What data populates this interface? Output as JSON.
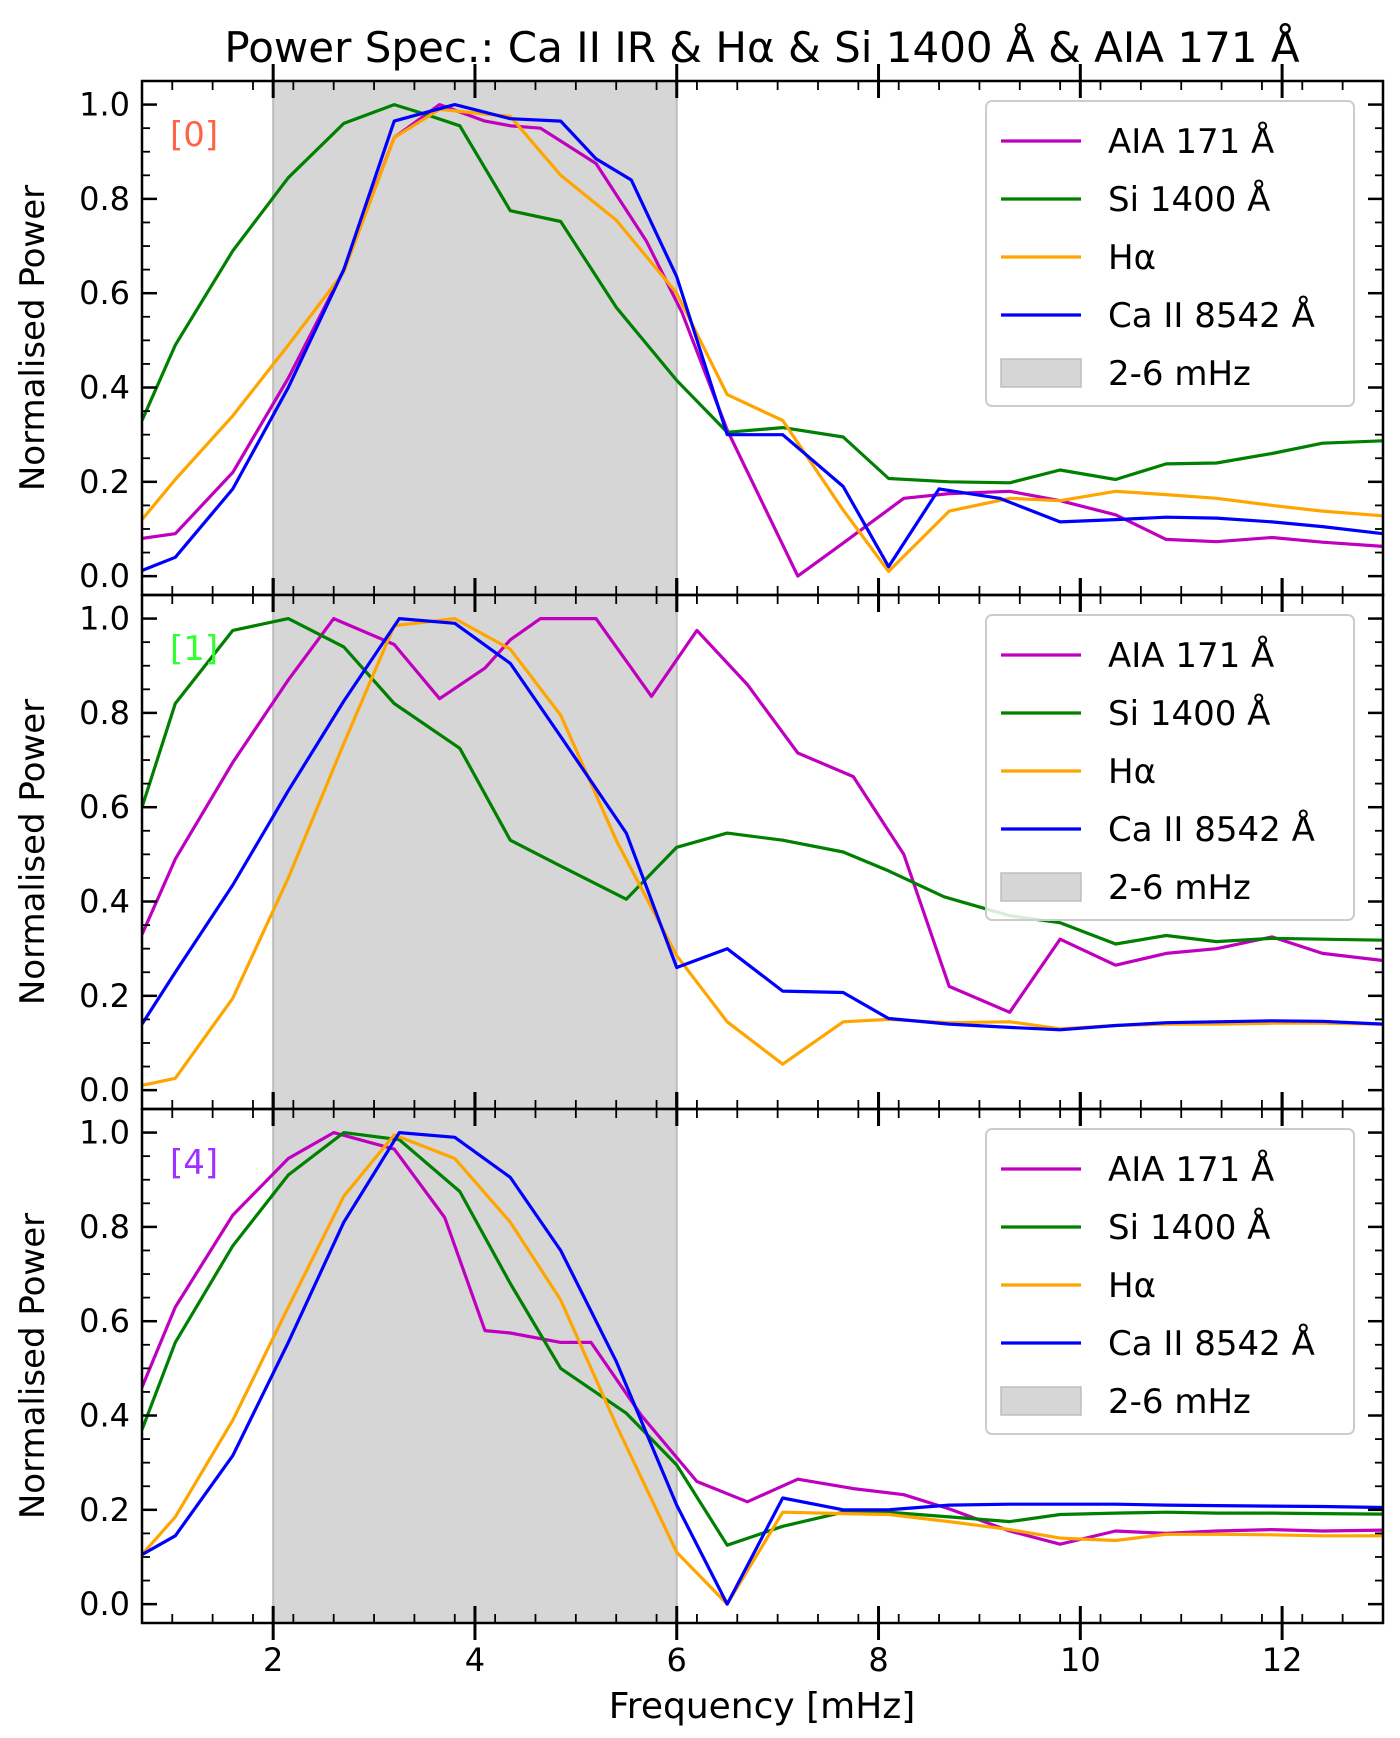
{
  "figure_title": "Power Spec.: Ca II IR & Hα & Si 1400 Å & AIA 171 Å",
  "xlabel": "Frequency [mHz]",
  "ylabel": "Normalised Power",
  "colors": {
    "AIA 171 Å": "#bf00bf",
    "Si 1400 Å": "#008000",
    "Hα": "#ffa500",
    "Ca II 8542 Å": "#0000ff",
    "band": "#d6d6d6"
  },
  "chart_data": [
    {
      "type": "line",
      "panel_label": "[0]",
      "panel_label_color": "#ff6347",
      "xlim": [
        0.7,
        13.0
      ],
      "ylim": [
        -0.04,
        1.05
      ],
      "xticks": [
        "2",
        "4",
        "6",
        "8",
        "10",
        "12"
      ],
      "yticks": [
        "0.0",
        "0.2",
        "0.4",
        "0.6",
        "0.8",
        "1.0"
      ],
      "shaded_band": {
        "label": "2-6 mHz",
        "x": [
          2,
          6
        ]
      },
      "legend": [
        "AIA 171 Å",
        "Si 1400 Å",
        "Hα",
        "Ca II 8542 Å",
        "2-6 mHz"
      ],
      "series": [
        {
          "name": "AIA 171 Å",
          "x": [
            0.7,
            1.03,
            1.6,
            2.15,
            2.7,
            3.2,
            3.65,
            4.1,
            4.35,
            4.65,
            5.2,
            5.7,
            6.05,
            6.5,
            7.2,
            7.65,
            8.25,
            8.7,
            9.3,
            9.8,
            10.35,
            10.85,
            11.35,
            11.9,
            12.4,
            13.0
          ],
          "y": [
            0.08,
            0.09,
            0.22,
            0.42,
            0.65,
            0.93,
            1.0,
            0.965,
            0.955,
            0.95,
            0.875,
            0.71,
            0.56,
            0.31,
            0.0,
            0.07,
            0.165,
            0.175,
            0.18,
            0.16,
            0.13,
            0.078,
            0.073,
            0.082,
            0.072,
            0.063
          ]
        },
        {
          "name": "Si 1400 Å",
          "x": [
            0.7,
            1.03,
            1.6,
            2.15,
            2.7,
            3.2,
            3.5,
            3.85,
            4.35,
            4.85,
            5.4,
            6.0,
            6.5,
            7.05,
            7.65,
            8.1,
            8.7,
            9.3,
            9.8,
            10.35,
            10.85,
            11.35,
            11.9,
            12.4,
            13.0
          ],
          "y": [
            0.33,
            0.49,
            0.69,
            0.845,
            0.96,
            1.0,
            0.98,
            0.955,
            0.775,
            0.752,
            0.57,
            0.415,
            0.305,
            0.315,
            0.295,
            0.207,
            0.2,
            0.198,
            0.225,
            0.205,
            0.238,
            0.24,
            0.26,
            0.282,
            0.287
          ]
        },
        {
          "name": "Hα",
          "x": [
            0.7,
            1.03,
            1.6,
            2.15,
            2.7,
            3.2,
            3.65,
            4.1,
            4.35,
            4.85,
            5.4,
            6.0,
            6.5,
            7.05,
            7.65,
            8.1,
            8.7,
            9.3,
            9.8,
            10.35,
            10.85,
            11.35,
            11.9,
            12.4,
            13.0
          ],
          "y": [
            0.12,
            0.205,
            0.34,
            0.49,
            0.645,
            0.93,
            0.99,
            0.98,
            0.975,
            0.85,
            0.755,
            0.6,
            0.385,
            0.33,
            0.14,
            0.01,
            0.138,
            0.165,
            0.16,
            0.18,
            0.173,
            0.165,
            0.15,
            0.138,
            0.128
          ]
        },
        {
          "name": "Ca II 8542 Å",
          "x": [
            0.7,
            1.03,
            1.6,
            2.15,
            2.7,
            3.2,
            3.8,
            4.35,
            4.85,
            5.2,
            5.55,
            6.0,
            6.5,
            7.05,
            7.65,
            8.1,
            8.6,
            9.2,
            9.8,
            10.35,
            10.85,
            11.35,
            11.9,
            12.4,
            13.0
          ],
          "y": [
            0.012,
            0.04,
            0.185,
            0.4,
            0.65,
            0.965,
            1.0,
            0.97,
            0.965,
            0.885,
            0.84,
            0.635,
            0.3,
            0.3,
            0.19,
            0.02,
            0.185,
            0.165,
            0.115,
            0.12,
            0.125,
            0.123,
            0.115,
            0.105,
            0.09
          ]
        }
      ]
    },
    {
      "type": "line",
      "panel_label": "[1]",
      "panel_label_color": "#32ff32",
      "xlim": [
        0.7,
        13.0
      ],
      "ylim": [
        -0.04,
        1.05
      ],
      "xticks": [
        "2",
        "4",
        "6",
        "8",
        "10",
        "12"
      ],
      "yticks": [
        "0.0",
        "0.2",
        "0.4",
        "0.6",
        "0.8",
        "1.0"
      ],
      "shaded_band": {
        "label": "2-6 mHz",
        "x": [
          2,
          6
        ]
      },
      "legend": [
        "AIA 171 Å",
        "Si 1400 Å",
        "Hα",
        "Ca II 8542 Å",
        "2-6 mHz"
      ],
      "series": [
        {
          "name": "AIA 171 Å",
          "x": [
            0.7,
            1.03,
            1.6,
            2.15,
            2.6,
            3.2,
            3.65,
            4.1,
            4.35,
            4.65,
            5.2,
            5.75,
            6.2,
            6.7,
            7.2,
            7.75,
            8.25,
            8.7,
            9.3,
            9.8,
            10.35,
            10.85,
            11.35,
            11.9,
            12.4,
            13.0
          ],
          "y": [
            0.33,
            0.49,
            0.695,
            0.87,
            1.0,
            0.945,
            0.83,
            0.895,
            0.955,
            1.0,
            1.0,
            0.835,
            0.975,
            0.86,
            0.715,
            0.665,
            0.5,
            0.22,
            0.165,
            0.32,
            0.265,
            0.29,
            0.3,
            0.325,
            0.29,
            0.275
          ]
        },
        {
          "name": "Si 1400 Å",
          "x": [
            0.7,
            1.03,
            1.6,
            2.15,
            2.7,
            3.2,
            3.85,
            4.35,
            4.85,
            5.5,
            6.0,
            6.5,
            7.05,
            7.65,
            8.1,
            8.65,
            9.3,
            9.8,
            10.35,
            10.85,
            11.35,
            11.9,
            12.4,
            13.0
          ],
          "y": [
            0.6,
            0.82,
            0.975,
            1.0,
            0.94,
            0.82,
            0.725,
            0.53,
            0.475,
            0.405,
            0.515,
            0.545,
            0.53,
            0.505,
            0.465,
            0.41,
            0.37,
            0.355,
            0.31,
            0.328,
            0.315,
            0.322,
            0.32,
            0.318
          ]
        },
        {
          "name": "Hα",
          "x": [
            0.7,
            1.03,
            1.6,
            2.15,
            2.7,
            3.2,
            3.8,
            4.35,
            4.85,
            5.4,
            6.0,
            6.5,
            7.05,
            7.65,
            8.1,
            8.7,
            9.3,
            9.8,
            10.35,
            10.85,
            11.35,
            11.9,
            12.4,
            13.0
          ],
          "y": [
            0.01,
            0.025,
            0.195,
            0.45,
            0.735,
            0.985,
            1.0,
            0.935,
            0.795,
            0.53,
            0.285,
            0.145,
            0.055,
            0.145,
            0.15,
            0.143,
            0.145,
            0.13,
            0.137,
            0.14,
            0.14,
            0.142,
            0.142,
            0.14
          ]
        },
        {
          "name": "Ca II 8542 Å",
          "x": [
            0.7,
            1.03,
            1.6,
            2.15,
            2.7,
            3.25,
            3.8,
            4.35,
            4.85,
            5.5,
            6.0,
            6.5,
            7.05,
            7.65,
            8.1,
            8.7,
            9.3,
            9.8,
            10.35,
            10.85,
            11.35,
            11.9,
            12.4,
            13.0
          ],
          "y": [
            0.14,
            0.25,
            0.435,
            0.635,
            0.825,
            1.0,
            0.99,
            0.905,
            0.75,
            0.545,
            0.26,
            0.3,
            0.21,
            0.207,
            0.152,
            0.14,
            0.133,
            0.128,
            0.137,
            0.143,
            0.145,
            0.147,
            0.146,
            0.14
          ]
        }
      ]
    },
    {
      "type": "line",
      "panel_label": "[4]",
      "panel_label_color": "#a030ff",
      "xlim": [
        0.7,
        13.0
      ],
      "ylim": [
        -0.04,
        1.05
      ],
      "xticks": [
        "2",
        "4",
        "6",
        "8",
        "10",
        "12"
      ],
      "yticks": [
        "0.0",
        "0.2",
        "0.4",
        "0.6",
        "0.8",
        "1.0"
      ],
      "shaded_band": {
        "label": "2-6 mHz",
        "x": [
          2,
          6
        ]
      },
      "legend": [
        "AIA 171 Å",
        "Si 1400 Å",
        "Hα",
        "Ca II 8542 Å",
        "2-6 mHz"
      ],
      "series": [
        {
          "name": "AIA 171 Å",
          "x": [
            0.7,
            1.03,
            1.6,
            2.15,
            2.6,
            3.2,
            3.7,
            4.1,
            4.35,
            4.85,
            5.15,
            5.65,
            6.2,
            6.7,
            7.2,
            7.75,
            8.25,
            8.7,
            9.3,
            9.8,
            10.35,
            10.85,
            11.35,
            11.9,
            12.4,
            13.0
          ],
          "y": [
            0.46,
            0.63,
            0.825,
            0.945,
            1.0,
            0.965,
            0.82,
            0.58,
            0.575,
            0.555,
            0.555,
            0.4,
            0.26,
            0.217,
            0.265,
            0.245,
            0.232,
            0.202,
            0.155,
            0.127,
            0.155,
            0.15,
            0.155,
            0.158,
            0.155,
            0.157
          ]
        },
        {
          "name": "Si 1400 Å",
          "x": [
            0.7,
            1.03,
            1.6,
            2.15,
            2.7,
            3.25,
            3.85,
            4.35,
            4.85,
            5.5,
            6.0,
            6.5,
            7.05,
            7.65,
            8.1,
            8.7,
            9.3,
            9.8,
            10.35,
            10.85,
            11.35,
            11.9,
            12.4,
            13.0
          ],
          "y": [
            0.37,
            0.555,
            0.76,
            0.91,
            1.0,
            0.985,
            0.875,
            0.68,
            0.5,
            0.405,
            0.295,
            0.125,
            0.165,
            0.195,
            0.195,
            0.185,
            0.175,
            0.19,
            0.193,
            0.195,
            0.193,
            0.193,
            0.192,
            0.191
          ]
        },
        {
          "name": "Hα",
          "x": [
            0.7,
            1.03,
            1.6,
            2.15,
            2.7,
            3.2,
            3.8,
            4.35,
            4.85,
            5.4,
            6.0,
            6.5,
            7.05,
            7.65,
            8.1,
            8.7,
            9.3,
            9.8,
            10.35,
            10.85,
            11.35,
            11.9,
            12.4,
            13.0
          ],
          "y": [
            0.105,
            0.185,
            0.39,
            0.63,
            0.865,
            0.995,
            0.945,
            0.81,
            0.645,
            0.38,
            0.11,
            0.0,
            0.195,
            0.192,
            0.19,
            0.175,
            0.158,
            0.14,
            0.135,
            0.148,
            0.148,
            0.147,
            0.145,
            0.145
          ]
        },
        {
          "name": "Ca II 8542 Å",
          "x": [
            0.7,
            1.03,
            1.6,
            2.15,
            2.7,
            3.25,
            3.8,
            4.35,
            4.85,
            5.4,
            6.0,
            6.5,
            7.05,
            7.65,
            8.1,
            8.7,
            9.3,
            9.8,
            10.35,
            10.85,
            11.35,
            11.9,
            12.4,
            13.0
          ],
          "y": [
            0.105,
            0.145,
            0.315,
            0.555,
            0.81,
            1.0,
            0.99,
            0.905,
            0.75,
            0.515,
            0.21,
            0.0,
            0.225,
            0.2,
            0.2,
            0.21,
            0.212,
            0.212,
            0.212,
            0.21,
            0.209,
            0.208,
            0.207,
            0.205
          ]
        }
      ]
    }
  ]
}
